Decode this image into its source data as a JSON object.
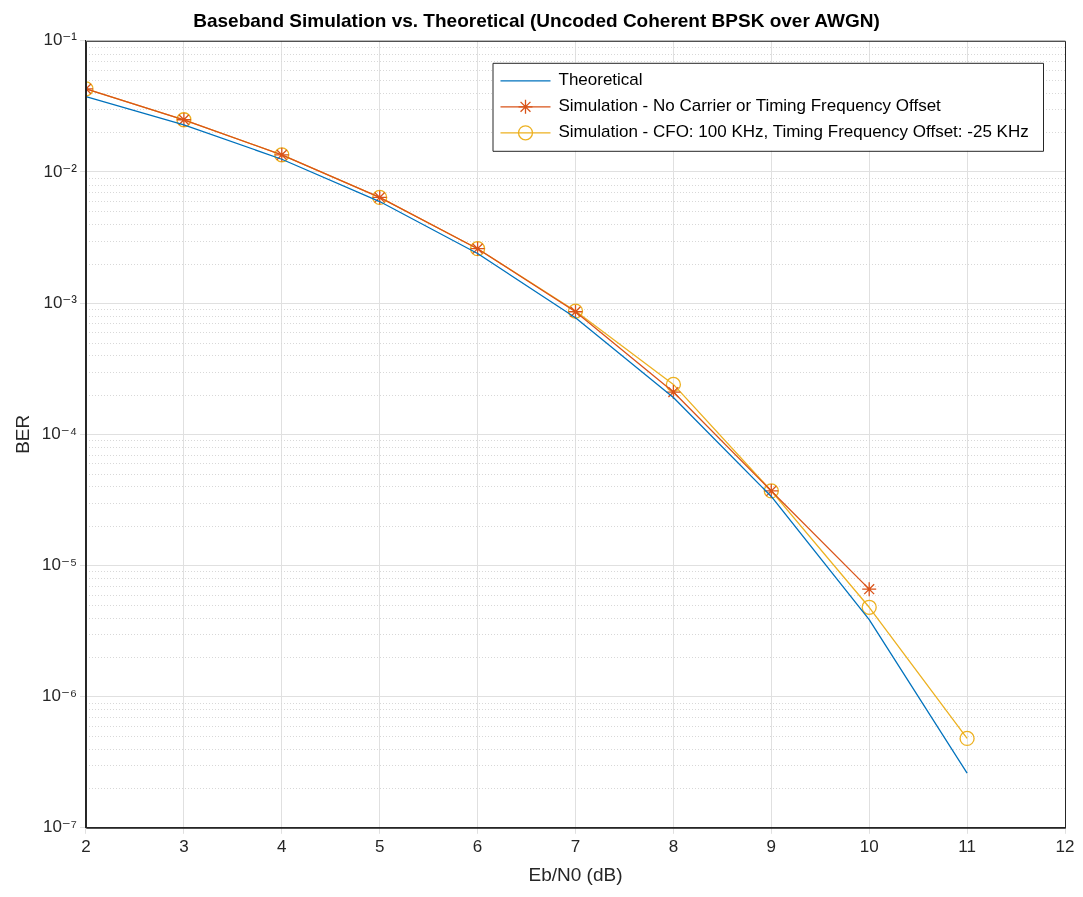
{
  "chart_data": {
    "type": "line",
    "title": "Baseband Simulation vs. Theoretical (Uncoded Coherent BPSK over AWGN)",
    "xlabel": "Eb/N0 (dB)",
    "ylabel": "BER",
    "x": [
      2,
      3,
      4,
      5,
      6,
      7,
      8,
      9,
      10,
      11
    ],
    "series": [
      {
        "name": "Theoretical",
        "color": "#0072bd",
        "marker": "none",
        "values": [
          0.0375,
          0.0229,
          0.0125,
          0.00595,
          0.00239,
          0.000773,
          0.000191,
          3.36e-05,
          3.87e-06,
          2.61e-07
        ]
      },
      {
        "name": "Simulation - No Carrier or Timing Frequency Offset",
        "color": "#d95319",
        "marker": "cross",
        "values": [
          0.043,
          0.025,
          0.0135,
          0.0064,
          0.0026,
          0.00086,
          0.00021,
          3.7e-05,
          6.6e-06,
          null
        ]
      },
      {
        "name": "Simulation - CFO: 100 KHz, Timing Frequency Offset: -25 KHz",
        "color": "#edb120",
        "marker": "circle",
        "values": [
          0.043,
          0.025,
          0.0135,
          0.0064,
          0.0026,
          0.00087,
          0.00024,
          3.7e-05,
          4.8e-06,
          4.8e-07
        ]
      }
    ],
    "xlim": [
      2,
      12
    ],
    "xticks": [
      2,
      3,
      4,
      5,
      6,
      7,
      8,
      9,
      10,
      11,
      12
    ],
    "ylim": [
      1e-07,
      0.1
    ],
    "log": "y",
    "yticks": [
      {
        "value": 1e-07,
        "label": "10⁻⁷"
      },
      {
        "value": 1e-06,
        "label": "10⁻⁶"
      },
      {
        "value": 1e-05,
        "label": "10⁻⁵"
      },
      {
        "value": 0.0001,
        "label": "10⁻⁴"
      },
      {
        "value": 0.001,
        "label": "10⁻³"
      },
      {
        "value": 0.01,
        "label": "10⁻²"
      },
      {
        "value": 0.1,
        "label": "10⁻¹"
      }
    ],
    "grid": true,
    "legend": "top right",
    "line_style": "solid"
  }
}
